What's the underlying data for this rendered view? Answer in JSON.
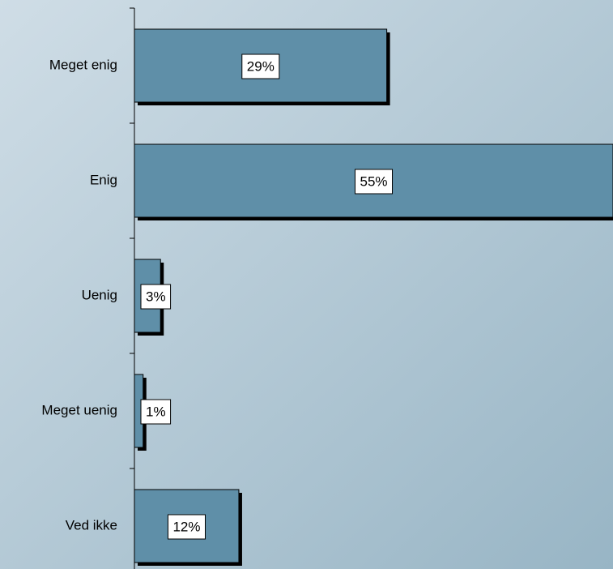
{
  "chart_data": {
    "type": "bar",
    "orientation": "horizontal",
    "categories": [
      "Meget enig",
      "Enig",
      "Uenig",
      "Meget uenig",
      "Ved ikke"
    ],
    "values": [
      29,
      55,
      3,
      1,
      12
    ],
    "value_labels": [
      "29%",
      "55%",
      "3%",
      "1%",
      "12%"
    ],
    "color": "#5f8fa8"
  }
}
